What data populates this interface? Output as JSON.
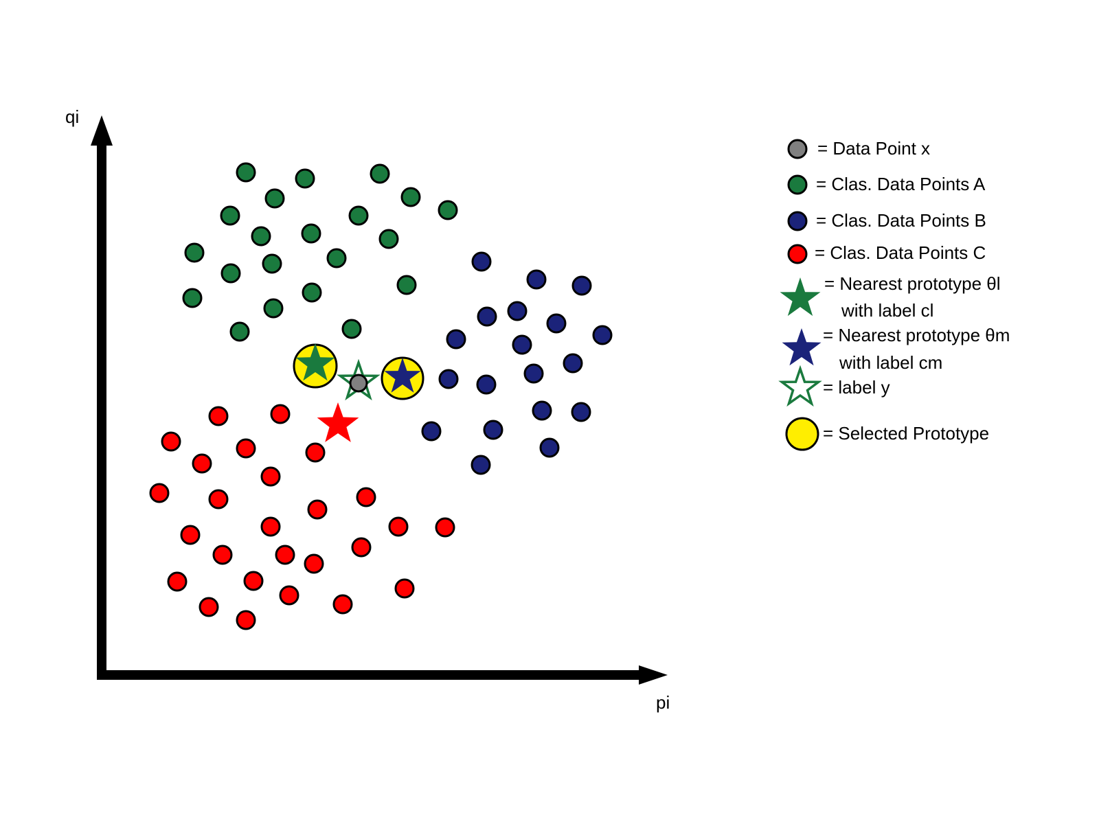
{
  "axes": {
    "x_label": "pi",
    "y_label": "qi"
  },
  "colors": {
    "class_a": "#1a7a3e",
    "class_b": "#1b237a",
    "class_c": "#ff0000",
    "data_point_x": "#808080",
    "selected": "#ffee00",
    "outline": "#000000"
  },
  "legend": {
    "data_point_x": "= Data Point x",
    "class_a": "= Clas. Data Points A",
    "class_b": "= Clas. Data Points B",
    "class_c": "= Clas. Data Points C",
    "nearest_l_line1": "= Nearest prototype θl",
    "nearest_l_line2": "with label cl",
    "nearest_m_line1": "= Nearest prototype θm",
    "nearest_m_line2": "with label cm",
    "label_y": "= label y",
    "selected": "= Selected Prototype"
  },
  "legend_symbols": {
    "data_point_x": "circle",
    "class_a": "circle",
    "class_b": "circle",
    "class_c": "circle",
    "nearest_l": "filled-star",
    "nearest_m": "filled-star",
    "label_y": "hollow-star",
    "selected": "circle"
  }
}
